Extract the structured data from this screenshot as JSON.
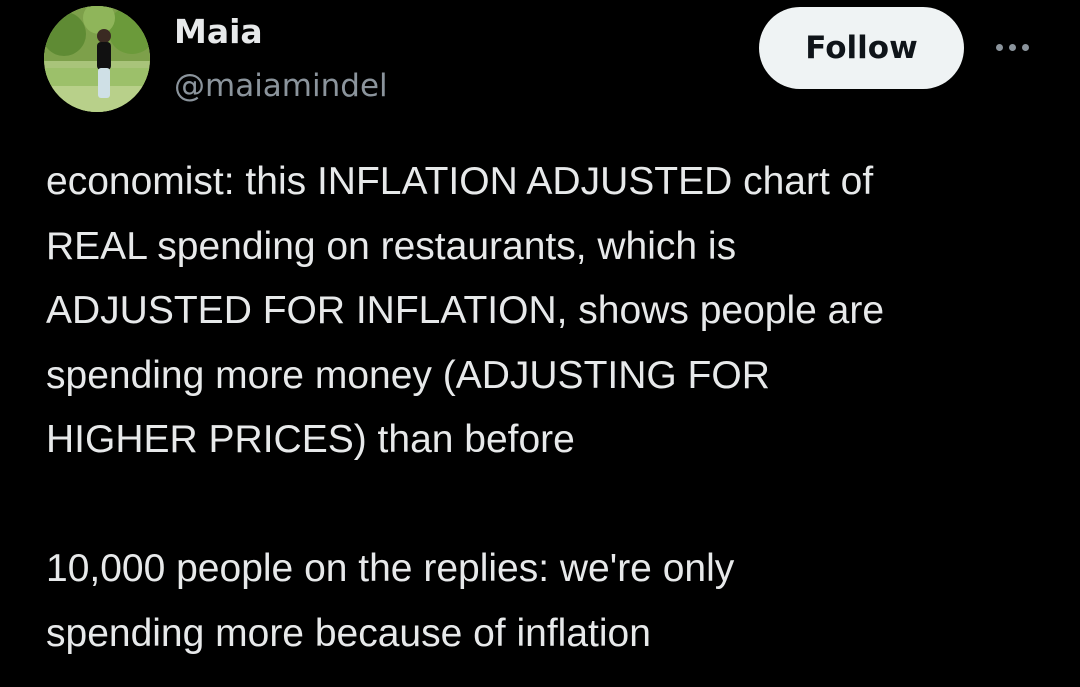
{
  "author": {
    "display_name": "Maia",
    "handle": "@maiamindel",
    "avatar_icon": "profile-photo"
  },
  "actions": {
    "follow_label": "Follow",
    "more_icon": "more-horizontal-icon"
  },
  "tweet": {
    "paragraph1": [
      "economist: this INFLATION ADJUSTED chart of",
      "REAL spending on restaurants, which is",
      "ADJUSTED FOR INFLATION, shows people are",
      "spending more money (ADJUSTING FOR",
      "HIGHER PRICES) than before"
    ],
    "paragraph2": [
      "10,000 people on the replies: we're only",
      "spending more because of inflation"
    ]
  },
  "colors": {
    "background": "#000000",
    "text_primary": "#e7e9ea",
    "text_secondary": "#8b949c",
    "follow_bg": "#eff3f4",
    "follow_text": "#0f1419"
  }
}
